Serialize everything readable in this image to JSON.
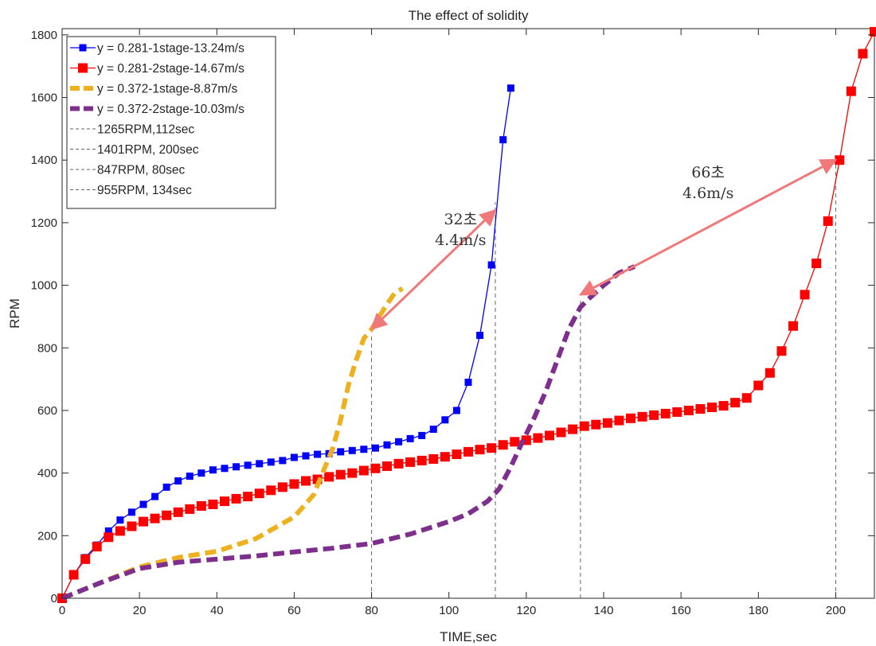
{
  "chart_data": {
    "type": "line",
    "title": "The effect of solidity",
    "xlabel": "TIME,sec",
    "ylabel": "RPM",
    "xlim": [
      0,
      210
    ],
    "ylim": [
      0,
      1820
    ],
    "xticks": [
      0,
      20,
      40,
      60,
      80,
      100,
      120,
      140,
      160,
      180,
      200
    ],
    "yticks": [
      0,
      200,
      400,
      600,
      800,
      1000,
      1200,
      1400,
      1600,
      1800
    ],
    "grid": false,
    "legend_position": "top-left",
    "series": [
      {
        "name": "y = 0.281-1stage-13.24m/s",
        "color": "#0000ff",
        "marker": "square",
        "style": "solid-thin",
        "x": [
          0,
          3,
          6,
          9,
          12,
          15,
          18,
          21,
          24,
          27,
          30,
          33,
          36,
          39,
          42,
          45,
          48,
          51,
          54,
          57,
          60,
          63,
          66,
          69,
          72,
          75,
          78,
          81,
          84,
          87,
          90,
          93,
          96,
          99,
          102,
          105,
          108,
          111,
          114,
          116
        ],
        "y": [
          0,
          75,
          130,
          170,
          215,
          250,
          275,
          300,
          325,
          355,
          375,
          390,
          400,
          410,
          415,
          420,
          425,
          430,
          435,
          440,
          450,
          455,
          460,
          462,
          468,
          472,
          476,
          480,
          490,
          500,
          510,
          520,
          540,
          570,
          600,
          690,
          840,
          1065,
          1465,
          1630
        ]
      },
      {
        "name": "y = 0.281-2stage-14.67m/s",
        "color": "#ff0000",
        "marker": "square",
        "style": "solid-thin",
        "x": [
          0,
          3,
          6,
          9,
          12,
          15,
          18,
          21,
          24,
          27,
          30,
          33,
          36,
          39,
          42,
          45,
          48,
          51,
          54,
          57,
          60,
          63,
          66,
          69,
          72,
          75,
          78,
          81,
          84,
          87,
          90,
          93,
          96,
          99,
          102,
          105,
          108,
          111,
          114,
          117,
          120,
          123,
          126,
          129,
          132,
          135,
          138,
          141,
          144,
          147,
          150,
          153,
          156,
          159,
          162,
          165,
          168,
          171,
          174,
          177,
          180,
          183,
          186,
          189,
          192,
          195,
          198,
          201,
          204,
          207,
          210
        ],
        "y": [
          0,
          75,
          125,
          165,
          195,
          215,
          230,
          245,
          255,
          265,
          275,
          285,
          295,
          300,
          310,
          318,
          325,
          335,
          345,
          355,
          365,
          375,
          380,
          388,
          395,
          400,
          408,
          415,
          422,
          430,
          435,
          440,
          445,
          452,
          460,
          468,
          475,
          480,
          490,
          500,
          505,
          512,
          520,
          530,
          540,
          550,
          555,
          560,
          568,
          575,
          580,
          585,
          590,
          595,
          600,
          605,
          610,
          615,
          625,
          640,
          680,
          720,
          790,
          870,
          970,
          1070,
          1205,
          1400,
          1620,
          1740,
          1810
        ]
      },
      {
        "name": "y = 0.372-1stage-8.87m/s",
        "color": "#edb120",
        "marker": "none",
        "style": "dashed-thick",
        "x": [
          0,
          10,
          20,
          30,
          40,
          50,
          60,
          65,
          68,
          70,
          72,
          74,
          76,
          78,
          80,
          82,
          84,
          86,
          88
        ],
        "y": [
          0,
          50,
          100,
          130,
          150,
          190,
          260,
          330,
          420,
          480,
          570,
          680,
          760,
          830,
          860,
          900,
          940,
          975,
          990
        ]
      },
      {
        "name": "y = 0.372-2stage-10.03m/s",
        "color": "#7e2f8e",
        "marker": "none",
        "style": "dashed-thick",
        "x": [
          0,
          10,
          20,
          30,
          40,
          50,
          60,
          70,
          80,
          90,
          100,
          105,
          110,
          113,
          116,
          119,
          122,
          125,
          128,
          131,
          134,
          136,
          140,
          144,
          148
        ],
        "y": [
          0,
          50,
          95,
          115,
          125,
          135,
          148,
          160,
          175,
          205,
          245,
          270,
          310,
          350,
          420,
          500,
          575,
          660,
          760,
          860,
          930,
          955,
          1000,
          1040,
          1060
        ]
      }
    ],
    "reference_lines": [
      {
        "name": "1265RPM,112sec",
        "x": 112,
        "y": 1265
      },
      {
        "name": "1401RPM, 200sec",
        "x": 200,
        "y": 1401
      },
      {
        "name": "847RPM, 80sec",
        "x": 80,
        "y": 847
      },
      {
        "name": "955RPM, 134sec",
        "x": 134,
        "y": 955
      }
    ],
    "annotations": [
      {
        "line1": "32초",
        "line2": "4.4m/s",
        "from": [
          80,
          860
        ],
        "to": [
          112,
          1240
        ],
        "label_at": [
          103,
          1195
        ]
      },
      {
        "line1": "66초",
        "line2": "4.6m/s",
        "from": [
          134,
          970
        ],
        "to": [
          200,
          1401
        ],
        "label_at": [
          167,
          1345
        ]
      }
    ]
  }
}
